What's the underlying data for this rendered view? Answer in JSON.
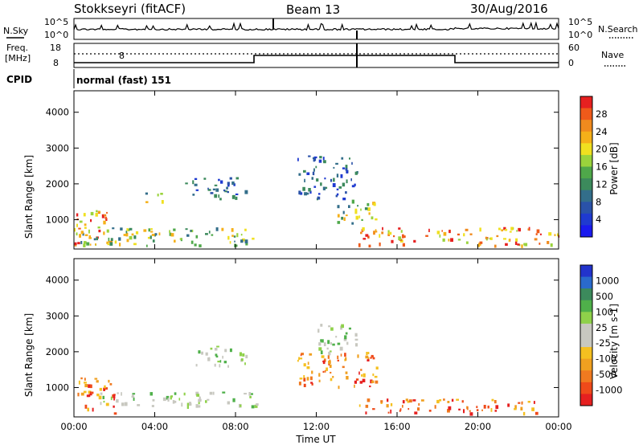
{
  "header": {
    "radar_title": "Stokkseyri (fitACF)",
    "beam": "Beam 13",
    "date": "30/Aug/2016"
  },
  "summary_panels": {
    "noise": {
      "left_label": "N.Sky",
      "right_label": "N.Search",
      "left_ticks": [
        "10^5",
        "10^0"
      ],
      "right_ticks": [
        "10^5",
        "10^0"
      ]
    },
    "frequency": {
      "left_label_1": "Freq.",
      "left_label_2": "[MHz]",
      "right_label": "Nave",
      "left_ticks": [
        "18",
        "8"
      ],
      "right_ticks": [
        "60",
        "0"
      ]
    },
    "cpid": {
      "label": "CPID",
      "mode_text": "normal (fast) 151"
    }
  },
  "chart_data": [
    {
      "type": "heatmap",
      "title": "",
      "xlabel": "",
      "ylabel": "Slant Range [km]",
      "x_ticks": [
        "00:00",
        "04:00",
        "08:00",
        "12:00",
        "16:00",
        "20:00",
        "00:00"
      ],
      "y_ticks": [
        "1000",
        "2000",
        "3000",
        "4000"
      ],
      "ylim": [
        180,
        4600
      ],
      "colorbar": {
        "label": "Power [dB]",
        "ticks": [
          "28",
          "24",
          "20",
          "16",
          "12",
          "8",
          "4"
        ],
        "colors": [
          "#e62020",
          "#ef5a1a",
          "#f08a1e",
          "#f5b019",
          "#f0e020",
          "#9ad33c",
          "#4fa84a",
          "#3c8a5c",
          "#336e8a",
          "#2a52a8",
          "#1f3ad0",
          "#1a1aee"
        ]
      },
      "echo_regions_hours_km": [
        {
          "t": [
            0,
            2
          ],
          "r": [
            300,
            1300
          ],
          "level": "high"
        },
        {
          "t": [
            0,
            9
          ],
          "r": [
            300,
            800
          ],
          "level": "mid"
        },
        {
          "t": [
            3.5,
            4.5
          ],
          "r": [
            1500,
            1800
          ],
          "level": "mid"
        },
        {
          "t": [
            5.5,
            8.5
          ],
          "r": [
            1600,
            2200
          ],
          "level": "low"
        },
        {
          "t": [
            11,
            14
          ],
          "r": [
            1600,
            2800
          ],
          "level": "low"
        },
        {
          "t": [
            13,
            15
          ],
          "r": [
            900,
            1600
          ],
          "level": "mid"
        },
        {
          "t": [
            14,
            24
          ],
          "r": [
            300,
            800
          ],
          "level": "high"
        }
      ]
    },
    {
      "type": "heatmap",
      "title": "",
      "xlabel": "Time UT",
      "ylabel": "Slant Range [km]",
      "x_ticks": [
        "00:00",
        "04:00",
        "08:00",
        "12:00",
        "16:00",
        "20:00",
        "00:00"
      ],
      "y_ticks": [
        "1000",
        "2000",
        "3000",
        "4000"
      ],
      "ylim": [
        180,
        4600
      ],
      "colorbar": {
        "label": "Velocity [m s-1]",
        "ticks": [
          "1000",
          "500",
          "100",
          "25",
          "-25",
          "-100",
          "-500",
          "-1000"
        ],
        "colors": [
          "#2233cc",
          "#2a6acc",
          "#3c8a5c",
          "#4fb04a",
          "#8fd14a",
          "#c8c8c0",
          "#c8c8c0",
          "#f5c020",
          "#f0a020",
          "#f07a20",
          "#ef4a1a",
          "#e62020"
        ]
      },
      "echo_regions_hours_km": [
        {
          "t": [
            0,
            2
          ],
          "r": [
            300,
            1300
          ],
          "level": "negative"
        },
        {
          "t": [
            1,
            9
          ],
          "r": [
            500,
            900
          ],
          "level": "zero"
        },
        {
          "t": [
            6,
            8.5
          ],
          "r": [
            1600,
            2200
          ],
          "level": "zero"
        },
        {
          "t": [
            11,
            15
          ],
          "r": [
            1000,
            2000
          ],
          "level": "negative"
        },
        {
          "t": [
            12,
            14
          ],
          "r": [
            2000,
            2800
          ],
          "level": "zero"
        },
        {
          "t": [
            14,
            23
          ],
          "r": [
            300,
            700
          ],
          "level": "negative"
        }
      ]
    }
  ]
}
